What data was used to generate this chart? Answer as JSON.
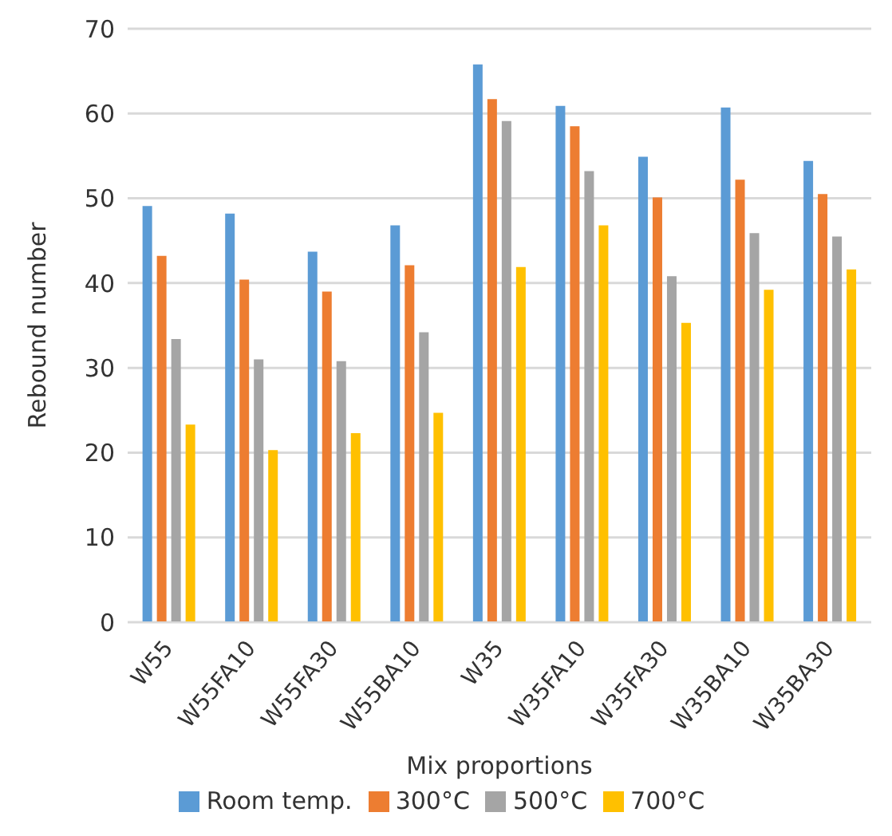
{
  "chart_data": {
    "type": "bar",
    "xlabel": "Mix proportions",
    "ylabel": "Rebound number",
    "categories": [
      "W55",
      "W55FA10",
      "W55FA30",
      "W55BA10",
      "W35",
      "W35FA10",
      "W35FA30",
      "W35BA10",
      "W35BA30"
    ],
    "series": [
      {
        "name": "Room temp.",
        "color": "#5b9bd5",
        "values": [
          49.1,
          48.2,
          43.7,
          46.8,
          65.8,
          60.9,
          54.9,
          60.7,
          54.4
        ]
      },
      {
        "name": "300°C",
        "color": "#ed7d31",
        "values": [
          43.2,
          40.4,
          39.0,
          42.1,
          61.7,
          58.5,
          50.1,
          52.2,
          50.5
        ]
      },
      {
        "name": "500°C",
        "color": "#a5a5a5",
        "values": [
          33.4,
          31.0,
          30.8,
          34.2,
          59.1,
          53.2,
          40.8,
          45.9,
          45.5
        ]
      },
      {
        "name": "700°C",
        "color": "#ffc000",
        "values": [
          23.3,
          20.3,
          22.3,
          24.7,
          41.9,
          46.8,
          35.3,
          39.2,
          41.6
        ]
      }
    ],
    "ylim": [
      0,
      70
    ],
    "yticks": [
      0,
      10,
      20,
      30,
      40,
      50,
      60,
      70
    ],
    "grid": "y",
    "legend": "bottom"
  }
}
